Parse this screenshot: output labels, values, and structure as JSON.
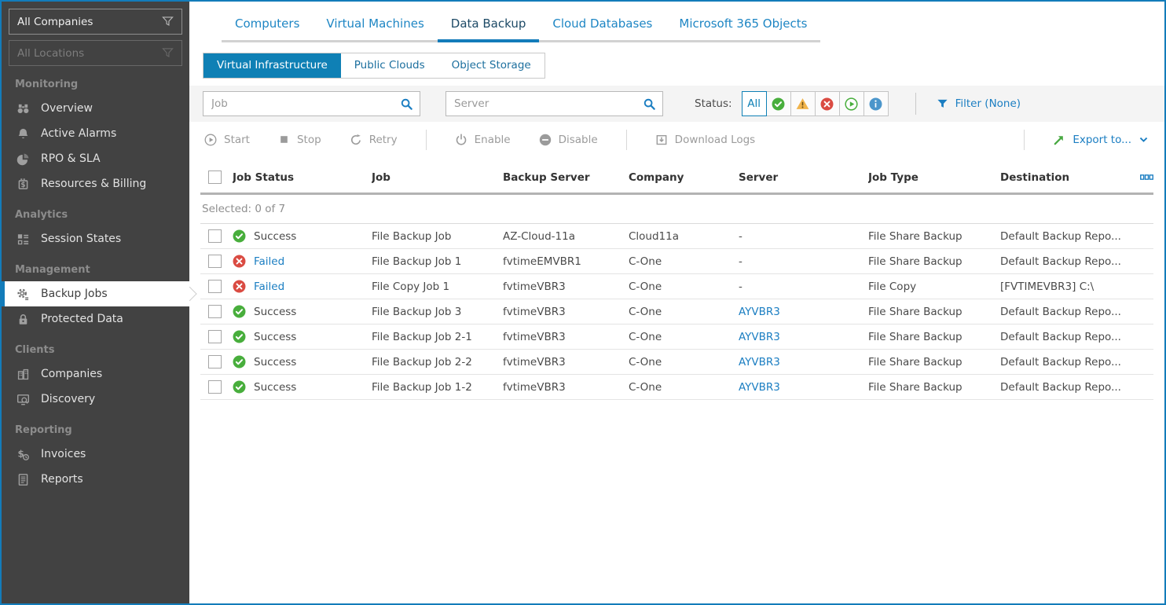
{
  "colors": {
    "frame_blue": "#137cba",
    "link_blue": "#1b7ec2",
    "subtab_active_blue": "#0f80b5",
    "success_green": "#48ae3c",
    "error_red": "#da4b42",
    "warning_amber": "#f1b44c",
    "info_blue": "#4b96cb",
    "export_green": "#49a942",
    "sidebar_bg": "#424242"
  },
  "sidebar": {
    "company_filter": {
      "value": "All Companies",
      "icon": "funnel"
    },
    "location_filter": {
      "value": "All Locations",
      "icon": "funnel"
    },
    "sections": [
      {
        "label": "Monitoring",
        "items": [
          {
            "id": "overview",
            "icon": "overview",
            "label": "Overview"
          },
          {
            "id": "active-alarms",
            "icon": "alarms",
            "label": "Active Alarms"
          },
          {
            "id": "rpo-sla",
            "icon": "rpo",
            "label": "RPO & SLA"
          },
          {
            "id": "resources-billing",
            "icon": "billing",
            "label": "Resources & Billing"
          }
        ]
      },
      {
        "label": "Analytics",
        "items": [
          {
            "id": "session-states",
            "icon": "sessions",
            "label": "Session States"
          }
        ]
      },
      {
        "label": "Management",
        "items": [
          {
            "id": "backup-jobs",
            "icon": "jobs",
            "label": "Backup Jobs",
            "active": true
          },
          {
            "id": "protected-data",
            "icon": "protected",
            "label": "Protected Data"
          }
        ]
      },
      {
        "label": "Clients",
        "items": [
          {
            "id": "companies",
            "icon": "companies",
            "label": "Companies"
          },
          {
            "id": "discovery",
            "icon": "discovery",
            "label": "Discovery"
          }
        ]
      },
      {
        "label": "Reporting",
        "items": [
          {
            "id": "invoices",
            "icon": "invoices",
            "label": "Invoices"
          },
          {
            "id": "reports",
            "icon": "reports",
            "label": "Reports"
          }
        ]
      }
    ]
  },
  "tabs": [
    {
      "label": "Computers"
    },
    {
      "label": "Virtual Machines"
    },
    {
      "label": "Data Backup",
      "active": true
    },
    {
      "label": "Cloud Databases"
    },
    {
      "label": "Microsoft 365 Objects"
    }
  ],
  "subtabs": [
    {
      "label": "Virtual Infrastructure",
      "active": true
    },
    {
      "label": "Public Clouds"
    },
    {
      "label": "Object Storage"
    }
  ],
  "filters": {
    "job_placeholder": "Job",
    "server_placeholder": "Server",
    "status_label": "Status:",
    "status_buttons": [
      {
        "id": "all",
        "label": "All",
        "active": true
      },
      {
        "id": "success",
        "icon": "success"
      },
      {
        "id": "warning",
        "icon": "warning"
      },
      {
        "id": "error",
        "icon": "error"
      },
      {
        "id": "running",
        "icon": "running"
      },
      {
        "id": "info",
        "icon": "info"
      }
    ],
    "filter_label": "Filter (None)"
  },
  "toolbar": {
    "groups": [
      [
        {
          "id": "start",
          "label": "Start"
        },
        {
          "id": "stop",
          "label": "Stop"
        },
        {
          "id": "retry",
          "label": "Retry"
        }
      ],
      [
        {
          "id": "enable",
          "label": "Enable"
        },
        {
          "id": "disable",
          "label": "Disable"
        }
      ],
      [
        {
          "id": "download-logs",
          "label": "Download Logs"
        }
      ]
    ],
    "export_label": "Export to..."
  },
  "table": {
    "columns": [
      "Job Status",
      "Job",
      "Backup Server",
      "Company",
      "Server",
      "Job Type",
      "Destination"
    ],
    "selected_text": "Selected: 0 of 7",
    "rows": [
      {
        "status": "Success",
        "status_icon": "success",
        "status_is_link": false,
        "job": "File Backup Job",
        "backup_server": "AZ-Cloud-11a",
        "company": "Cloud11a",
        "server": "-",
        "server_is_link": false,
        "job_type": "File Share Backup",
        "destination": "Default Backup Repo..."
      },
      {
        "status": "Failed",
        "status_icon": "error",
        "status_is_link": true,
        "job": "File Backup Job 1",
        "backup_server": "fvtimeEMVBR1",
        "company": "C-One",
        "server": "-",
        "server_is_link": false,
        "job_type": "File Share Backup",
        "destination": "Default Backup Repo..."
      },
      {
        "status": "Failed",
        "status_icon": "error",
        "status_is_link": true,
        "job": "File Copy Job 1",
        "backup_server": "fvtimeVBR3",
        "company": "C-One",
        "server": "-",
        "server_is_link": false,
        "job_type": "File Copy",
        "destination": "[FVTIMEVBR3] C:\\"
      },
      {
        "status": "Success",
        "status_icon": "success",
        "status_is_link": false,
        "job": "File Backup Job 3",
        "backup_server": "fvtimeVBR3",
        "company": "C-One",
        "server": "AYVBR3",
        "server_is_link": true,
        "job_type": "File Share Backup",
        "destination": "Default Backup Repo..."
      },
      {
        "status": "Success",
        "status_icon": "success",
        "status_is_link": false,
        "job": "File Backup Job 2-1",
        "backup_server": "fvtimeVBR3",
        "company": "C-One",
        "server": "AYVBR3",
        "server_is_link": true,
        "job_type": "File Share Backup",
        "destination": "Default Backup Repo..."
      },
      {
        "status": "Success",
        "status_icon": "success",
        "status_is_link": false,
        "job": "File Backup Job 2-2",
        "backup_server": "fvtimeVBR3",
        "company": "C-One",
        "server": "AYVBR3",
        "server_is_link": true,
        "job_type": "File Share Backup",
        "destination": "Default Backup Repo..."
      },
      {
        "status": "Success",
        "status_icon": "success",
        "status_is_link": false,
        "job": "File Backup Job 1-2",
        "backup_server": "fvtimeVBR3",
        "company": "C-One",
        "server": "AYVBR3",
        "server_is_link": true,
        "job_type": "File Share Backup",
        "destination": "Default Backup Repo..."
      }
    ]
  }
}
